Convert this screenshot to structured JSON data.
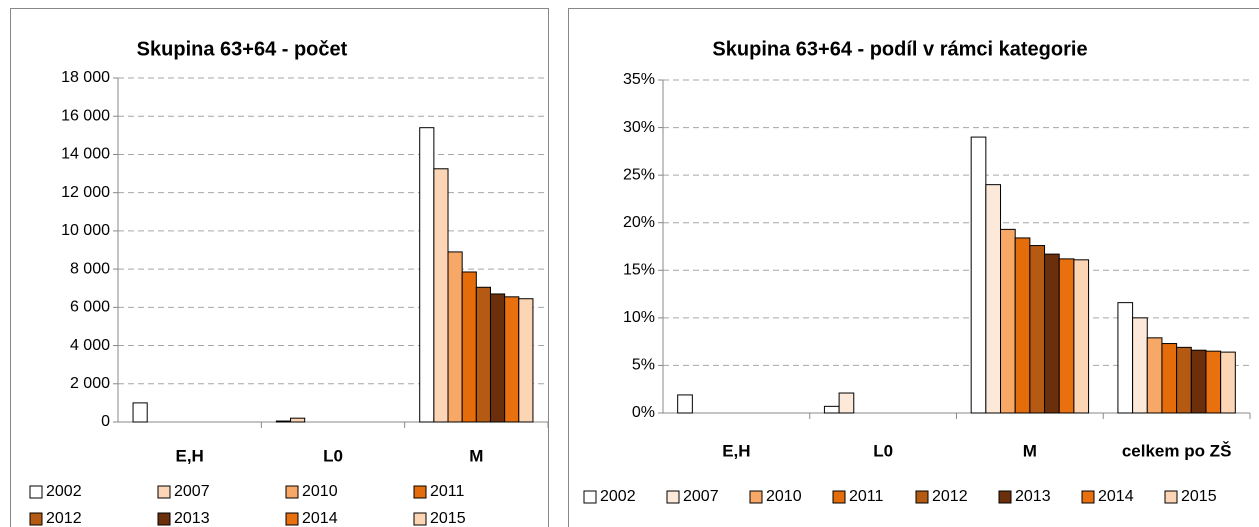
{
  "chart_data": [
    {
      "type": "bar",
      "title": "Skupina 63+64 - počet",
      "categories": [
        "E,H",
        "L0",
        "M"
      ],
      "series": [
        {
          "name": "2002",
          "color": "#ffffff",
          "values": [
            1000,
            50,
            15400
          ]
        },
        {
          "name": "2007",
          "color": "#fbd5b5",
          "values": [
            0,
            200,
            13250
          ]
        },
        {
          "name": "2010",
          "color": "#f7a866",
          "values": [
            0,
            0,
            8900
          ]
        },
        {
          "name": "2011",
          "color": "#e46c0a",
          "values": [
            0,
            0,
            7850
          ]
        },
        {
          "name": "2012",
          "color": "#b45a12",
          "values": [
            0,
            0,
            7050
          ]
        },
        {
          "name": "2013",
          "color": "#6b2f0c",
          "values": [
            0,
            0,
            6700
          ]
        },
        {
          "name": "2014",
          "color": "#e8700f",
          "values": [
            0,
            0,
            6550
          ]
        },
        {
          "name": "2015",
          "color": "#fcd5b4",
          "values": [
            0,
            0,
            6450
          ]
        }
      ],
      "ylim": [
        0,
        18000
      ],
      "yticks": [
        0,
        {
          "value": 2000,
          "label": "2 000"
        },
        {
          "value": 4000,
          "label": "4 000"
        },
        {
          "value": 6000,
          "label": "6 000"
        },
        {
          "value": 8000,
          "label": "8 000"
        },
        {
          "value": 10000,
          "label": "10 000"
        },
        {
          "value": 12000,
          "label": "12 000"
        },
        {
          "value": 14000,
          "label": "14 000"
        },
        {
          "value": 16000,
          "label": "16 000"
        },
        {
          "value": 18000,
          "label": "18 000"
        }
      ],
      "grid": true,
      "legend": "bottom"
    },
    {
      "type": "bar",
      "title": "Skupina 63+64 - podíl v rámci kategorie",
      "categories": [
        "E,H",
        "L0",
        "M",
        "celkem po ZŠ"
      ],
      "series": [
        {
          "name": "2002",
          "color": "#ffffff",
          "values": [
            1.9,
            0.7,
            29,
            11.6
          ]
        },
        {
          "name": "2007",
          "color": "#fde9d9",
          "values": [
            0,
            2.1,
            24,
            10.0
          ]
        },
        {
          "name": "2010",
          "color": "#f7a866",
          "values": [
            0,
            0,
            19.3,
            7.9
          ]
        },
        {
          "name": "2011",
          "color": "#e46c0a",
          "values": [
            0,
            0,
            18.4,
            7.3
          ]
        },
        {
          "name": "2012",
          "color": "#b45a12",
          "values": [
            0,
            0,
            17.6,
            6.9
          ]
        },
        {
          "name": "2013",
          "color": "#6b2f0c",
          "values": [
            0,
            0,
            16.7,
            6.6
          ]
        },
        {
          "name": "2014",
          "color": "#e8700f",
          "values": [
            0,
            0,
            16.2,
            6.5
          ]
        },
        {
          "name": "2015",
          "color": "#fcd5b4",
          "values": [
            0,
            0,
            16.1,
            6.4
          ]
        }
      ],
      "ylim": [
        0,
        35
      ],
      "yticks": [
        {
          "value": 0,
          "label": "0%"
        },
        {
          "value": 5,
          "label": "5%"
        },
        {
          "value": 10,
          "label": "10%"
        },
        {
          "value": 15,
          "label": "15%"
        },
        {
          "value": 20,
          "label": "20%"
        },
        {
          "value": 25,
          "label": "25%"
        },
        {
          "value": 30,
          "label": "30%"
        },
        {
          "value": 35,
          "label": "35%"
        }
      ],
      "grid": true,
      "legend": "bottom"
    }
  ]
}
